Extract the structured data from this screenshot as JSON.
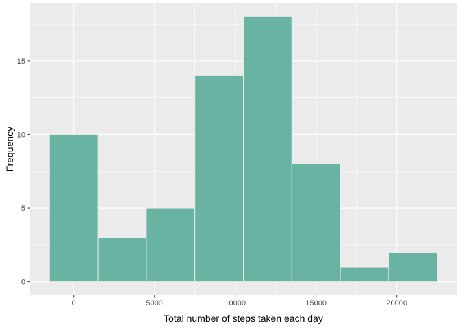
{
  "chart_data": {
    "type": "bar",
    "title": "",
    "xlabel": "Total number of steps taken each day",
    "ylabel": "Frequency",
    "bins": [
      {
        "start": -1500,
        "end": 1500,
        "count": 10
      },
      {
        "start": 1500,
        "end": 4500,
        "count": 3
      },
      {
        "start": 4500,
        "end": 7500,
        "count": 5
      },
      {
        "start": 7500,
        "end": 10500,
        "count": 14
      },
      {
        "start": 10500,
        "end": 13500,
        "count": 18
      },
      {
        "start": 13500,
        "end": 16500,
        "count": 8
      },
      {
        "start": 16500,
        "end": 19500,
        "count": 1
      },
      {
        "start": 19500,
        "end": 22500,
        "count": 2
      }
    ],
    "xlim": [
      -2700,
      23700
    ],
    "ylim": [
      -0.9,
      18.9
    ],
    "x_ticks": [
      0,
      5000,
      10000,
      15000,
      20000
    ],
    "x_tick_labels": [
      "0",
      "5000",
      "10000",
      "15000",
      "20000"
    ],
    "x_minor_ticks": [
      2500,
      7500,
      12500,
      17500,
      22500
    ],
    "y_ticks": [
      0,
      5,
      10,
      15
    ],
    "y_tick_labels": [
      "0",
      "5",
      "10",
      "15"
    ],
    "y_minor_ticks": [
      2.5,
      7.5,
      12.5,
      17.5
    ],
    "grid": true,
    "legend": "none",
    "colors": {
      "panel_background": "#ebebeb",
      "grid": "#ffffff",
      "bar_fill": "#69b3a2",
      "bar_outline": "#e9e9e9",
      "tick": "#333333",
      "tick_text": "#4d4d4d",
      "axis_title": "#000000"
    }
  }
}
